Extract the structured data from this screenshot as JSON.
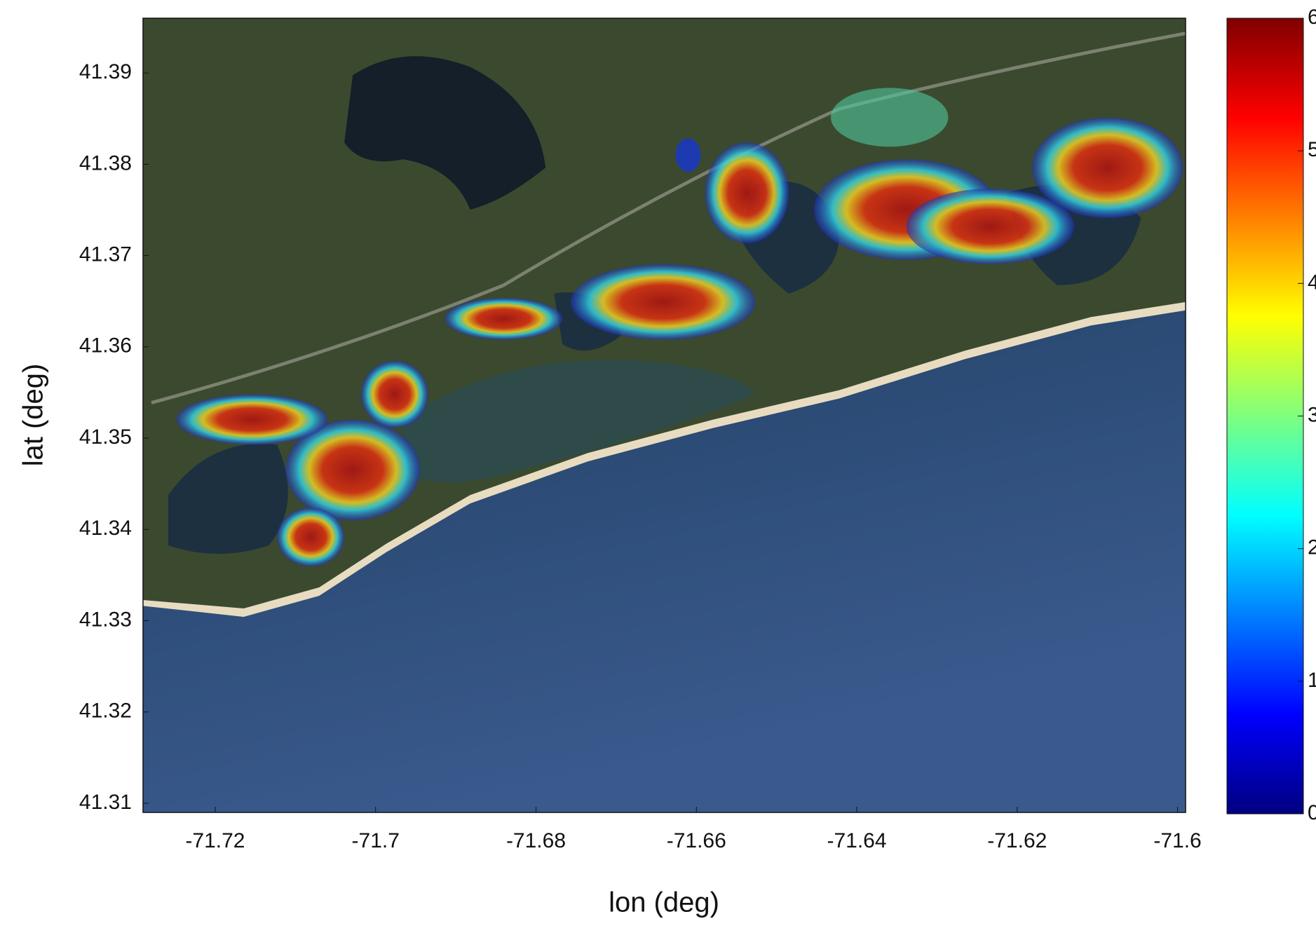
{
  "chart_data": {
    "type": "map",
    "xlabel": "lon (deg)",
    "ylabel": "lat (deg)",
    "xlim": [
      -71.729,
      -71.599
    ],
    "xticks": [
      -71.72,
      -71.7,
      -71.68,
      -71.66,
      -71.64,
      -71.62,
      -71.6
    ],
    "ylim": [
      41.309,
      41.396
    ],
    "yticks": [
      41.31,
      41.32,
      41.33,
      41.34,
      41.35,
      41.36,
      41.37,
      41.38,
      41.39
    ],
    "colormap": "jet",
    "clim": [
      0,
      6
    ],
    "cticks": [
      0,
      1,
      2,
      3,
      4,
      5,
      6
    ]
  }
}
